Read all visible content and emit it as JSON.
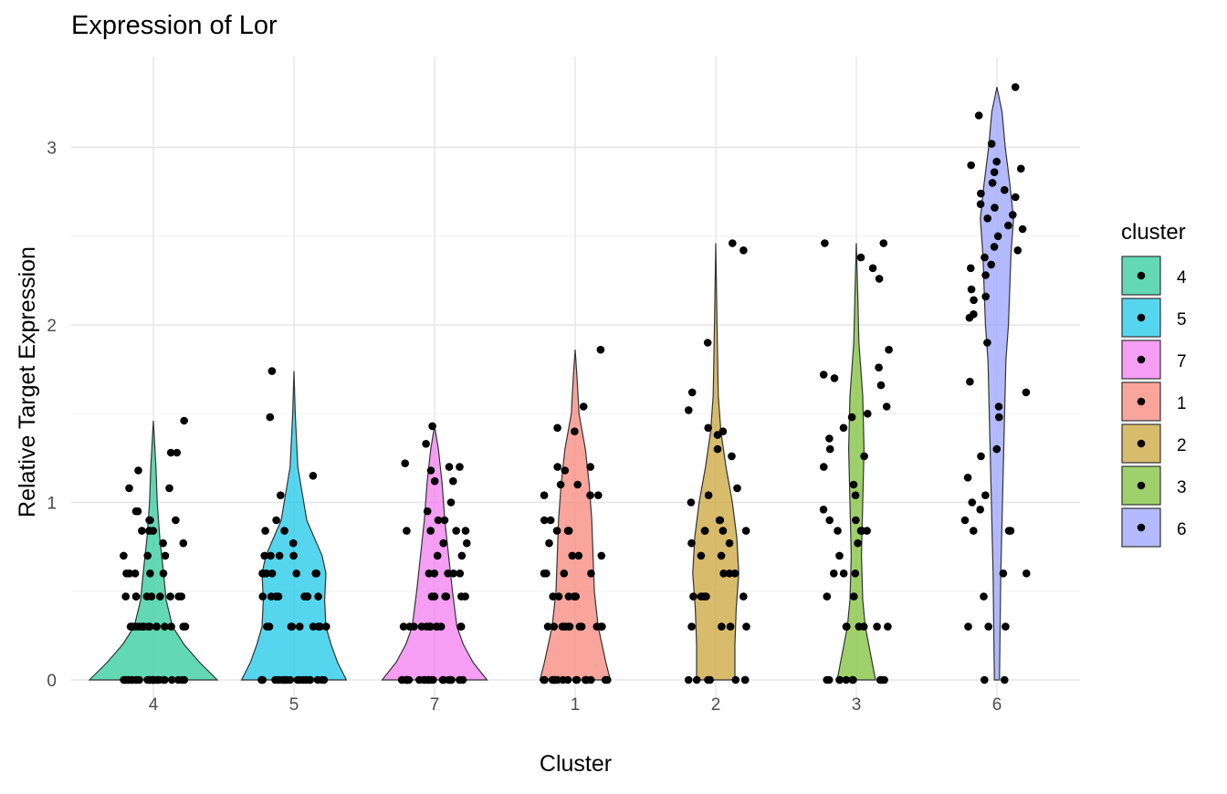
{
  "chart_data": {
    "type": "violin",
    "title": "Expression of Lor",
    "xlabel": "Cluster",
    "ylabel": "Relative Target Expression",
    "categories": [
      "4",
      "5",
      "7",
      "1",
      "2",
      "3",
      "6"
    ],
    "y_ticks": [
      "0",
      "1",
      "2",
      "3"
    ],
    "ylim": [
      0,
      3.35
    ],
    "grid": true,
    "legend": {
      "title": "cluster",
      "placement": "right",
      "entries": [
        "4",
        "5",
        "7",
        "1",
        "2",
        "3",
        "6"
      ]
    },
    "colors": {
      "4": "#2ecc9a",
      "5": "#1ec8e8",
      "7": "#f27ef0",
      "1": "#f8877b",
      "2": "#cba53b",
      "3": "#7ec23a",
      "6": "#9aa3ff"
    },
    "series": [
      {
        "cluster": "4",
        "max": 1.46,
        "density": [
          [
            0,
            1.0
          ],
          [
            0.1,
            0.72
          ],
          [
            0.2,
            0.48
          ],
          [
            0.3,
            0.3
          ],
          [
            0.45,
            0.2
          ],
          [
            0.6,
            0.16
          ],
          [
            0.8,
            0.1
          ],
          [
            1.0,
            0.06
          ],
          [
            1.2,
            0.04
          ],
          [
            1.46,
            0.0
          ]
        ],
        "points": [
          0,
          0,
          0,
          0,
          0,
          0,
          0,
          0,
          0,
          0,
          0,
          0,
          0,
          0,
          0,
          0,
          0,
          0,
          0,
          0,
          0,
          0,
          0,
          0,
          0,
          0,
          0.3,
          0.3,
          0.3,
          0.3,
          0.3,
          0.3,
          0.3,
          0.3,
          0.3,
          0.3,
          0.3,
          0.3,
          0.3,
          0.3,
          0.3,
          0.3,
          0.47,
          0.47,
          0.47,
          0.47,
          0.47,
          0.47,
          0.47,
          0.47,
          0.47,
          0.6,
          0.6,
          0.6,
          0.6,
          0.6,
          0.7,
          0.7,
          0.7,
          0.77,
          0.77,
          0.84,
          0.84,
          0.84,
          0.84,
          0.9,
          0.9,
          0.9,
          0.95,
          0.95,
          1.08,
          1.08,
          1.18,
          1.28,
          1.28,
          1.46
        ]
      },
      {
        "cluster": "5",
        "max": 1.74,
        "density": [
          [
            0,
            0.82
          ],
          [
            0.1,
            0.68
          ],
          [
            0.2,
            0.58
          ],
          [
            0.3,
            0.5
          ],
          [
            0.45,
            0.48
          ],
          [
            0.6,
            0.5
          ],
          [
            0.7,
            0.44
          ],
          [
            0.9,
            0.2
          ],
          [
            1.2,
            0.06
          ],
          [
            1.5,
            0.02
          ],
          [
            1.74,
            0.0
          ]
        ],
        "points": [
          0,
          0,
          0,
          0,
          0,
          0,
          0,
          0,
          0,
          0,
          0,
          0,
          0,
          0,
          0,
          0,
          0,
          0,
          0.3,
          0.3,
          0.3,
          0.3,
          0.3,
          0.3,
          0.3,
          0.3,
          0.3,
          0.47,
          0.47,
          0.47,
          0.47,
          0.47,
          0.47,
          0.47,
          0.47,
          0.6,
          0.6,
          0.6,
          0.6,
          0.6,
          0.6,
          0.6,
          0.6,
          0.7,
          0.7,
          0.7,
          0.7,
          0.77,
          0.84,
          0.84,
          0.9,
          1.04,
          1.15,
          1.48,
          1.74
        ]
      },
      {
        "cluster": "7",
        "max": 1.43,
        "density": [
          [
            0,
            0.82
          ],
          [
            0.1,
            0.6
          ],
          [
            0.2,
            0.45
          ],
          [
            0.3,
            0.35
          ],
          [
            0.5,
            0.28
          ],
          [
            0.7,
            0.22
          ],
          [
            0.9,
            0.16
          ],
          [
            1.1,
            0.12
          ],
          [
            1.3,
            0.06
          ],
          [
            1.43,
            0.0
          ]
        ],
        "points": [
          0,
          0,
          0,
          0,
          0,
          0,
          0,
          0,
          0,
          0,
          0,
          0,
          0,
          0,
          0,
          0,
          0,
          0,
          0,
          0,
          0,
          0.3,
          0.3,
          0.3,
          0.3,
          0.3,
          0.3,
          0.3,
          0.3,
          0.3,
          0.3,
          0.3,
          0.3,
          0.47,
          0.47,
          0.47,
          0.47,
          0.47,
          0.47,
          0.6,
          0.6,
          0.6,
          0.6,
          0.6,
          0.7,
          0.7,
          0.77,
          0.77,
          0.84,
          0.84,
          0.84,
          0.84,
          0.9,
          0.9,
          0.95,
          1.0,
          1.12,
          1.12,
          1.18,
          1.2,
          1.2,
          1.22,
          1.33,
          1.43
        ]
      },
      {
        "cluster": "1",
        "max": 1.86,
        "density": [
          [
            0,
            0.55
          ],
          [
            0.1,
            0.48
          ],
          [
            0.2,
            0.42
          ],
          [
            0.3,
            0.36
          ],
          [
            0.5,
            0.3
          ],
          [
            0.7,
            0.28
          ],
          [
            0.9,
            0.26
          ],
          [
            1.1,
            0.22
          ],
          [
            1.3,
            0.16
          ],
          [
            1.5,
            0.06
          ],
          [
            1.7,
            0.03
          ],
          [
            1.86,
            0.0
          ]
        ],
        "points": [
          0,
          0,
          0,
          0,
          0,
          0,
          0,
          0,
          0,
          0,
          0,
          0,
          0,
          0,
          0,
          0,
          0,
          0.3,
          0.3,
          0.3,
          0.3,
          0.3,
          0.3,
          0.3,
          0.3,
          0.3,
          0.3,
          0.3,
          0.47,
          0.47,
          0.47,
          0.47,
          0.47,
          0.6,
          0.6,
          0.6,
          0.6,
          0.7,
          0.7,
          0.7,
          0.77,
          0.84,
          0.84,
          0.84,
          0.9,
          0.9,
          1.04,
          1.04,
          1.04,
          1.1,
          1.1,
          1.18,
          1.2,
          1.2,
          1.4,
          1.42,
          1.54,
          1.86
        ]
      },
      {
        "cluster": "2",
        "max": 2.46,
        "density": [
          [
            0,
            0.3
          ],
          [
            0.2,
            0.3
          ],
          [
            0.4,
            0.32
          ],
          [
            0.6,
            0.36
          ],
          [
            0.8,
            0.33
          ],
          [
            1.0,
            0.26
          ],
          [
            1.2,
            0.16
          ],
          [
            1.4,
            0.08
          ],
          [
            1.6,
            0.04
          ],
          [
            2.0,
            0.02
          ],
          [
            2.46,
            0.0
          ]
        ],
        "points": [
          0,
          0,
          0,
          0,
          0,
          0,
          0,
          0.3,
          0.3,
          0.3,
          0.3,
          0.47,
          0.47,
          0.47,
          0.47,
          0.47,
          0.6,
          0.6,
          0.6,
          0.7,
          0.7,
          0.77,
          0.77,
          0.84,
          0.84,
          0.84,
          0.84,
          0.9,
          0.9,
          1.0,
          1.04,
          1.08,
          1.26,
          1.3,
          1.38,
          1.4,
          1.42,
          1.52,
          1.62,
          1.9,
          2.42,
          2.46
        ]
      },
      {
        "cluster": "3",
        "max": 2.46,
        "density": [
          [
            0,
            0.3
          ],
          [
            0.15,
            0.22
          ],
          [
            0.3,
            0.14
          ],
          [
            0.45,
            0.1
          ],
          [
            0.7,
            0.08
          ],
          [
            1.0,
            0.1
          ],
          [
            1.3,
            0.12
          ],
          [
            1.6,
            0.1
          ],
          [
            1.9,
            0.04
          ],
          [
            2.2,
            0.02
          ],
          [
            2.46,
            0.0
          ]
        ],
        "points": [
          0,
          0,
          0,
          0,
          0,
          0,
          0,
          0,
          0,
          0,
          0.3,
          0.3,
          0.3,
          0.3,
          0.3,
          0.3,
          0.47,
          0.47,
          0.6,
          0.6,
          0.6,
          0.7,
          0.77,
          0.84,
          0.84,
          0.84,
          0.84,
          0.9,
          0.9,
          0.96,
          1.04,
          1.1,
          1.2,
          1.26,
          1.3,
          1.36,
          1.42,
          1.48,
          1.5,
          1.54,
          1.66,
          1.7,
          1.72,
          1.76,
          1.86,
          2.26,
          2.32,
          2.38,
          2.46,
          2.46
        ]
      },
      {
        "cluster": "6",
        "max": 3.34,
        "density": [
          [
            0,
            0.04
          ],
          [
            0.3,
            0.05
          ],
          [
            0.6,
            0.06
          ],
          [
            0.9,
            0.08
          ],
          [
            1.2,
            0.1
          ],
          [
            1.5,
            0.12
          ],
          [
            1.8,
            0.14
          ],
          [
            2.0,
            0.18
          ],
          [
            2.2,
            0.2
          ],
          [
            2.4,
            0.22
          ],
          [
            2.6,
            0.26
          ],
          [
            2.8,
            0.2
          ],
          [
            3.0,
            0.13
          ],
          [
            3.2,
            0.08
          ],
          [
            3.34,
            0.0
          ]
        ],
        "points": [
          0,
          0,
          0.3,
          0.3,
          0.3,
          0.47,
          0.6,
          0.6,
          0.84,
          0.84,
          0.84,
          0.9,
          0.96,
          1.0,
          1.04,
          1.14,
          1.26,
          1.3,
          1.48,
          1.54,
          1.62,
          1.68,
          1.9,
          2.04,
          2.06,
          2.14,
          2.16,
          2.2,
          2.28,
          2.32,
          2.34,
          2.38,
          2.42,
          2.44,
          2.5,
          2.54,
          2.56,
          2.6,
          2.62,
          2.66,
          2.68,
          2.72,
          2.74,
          2.76,
          2.8,
          2.86,
          2.88,
          2.9,
          2.92,
          3.02,
          3.18,
          3.34
        ]
      }
    ]
  }
}
